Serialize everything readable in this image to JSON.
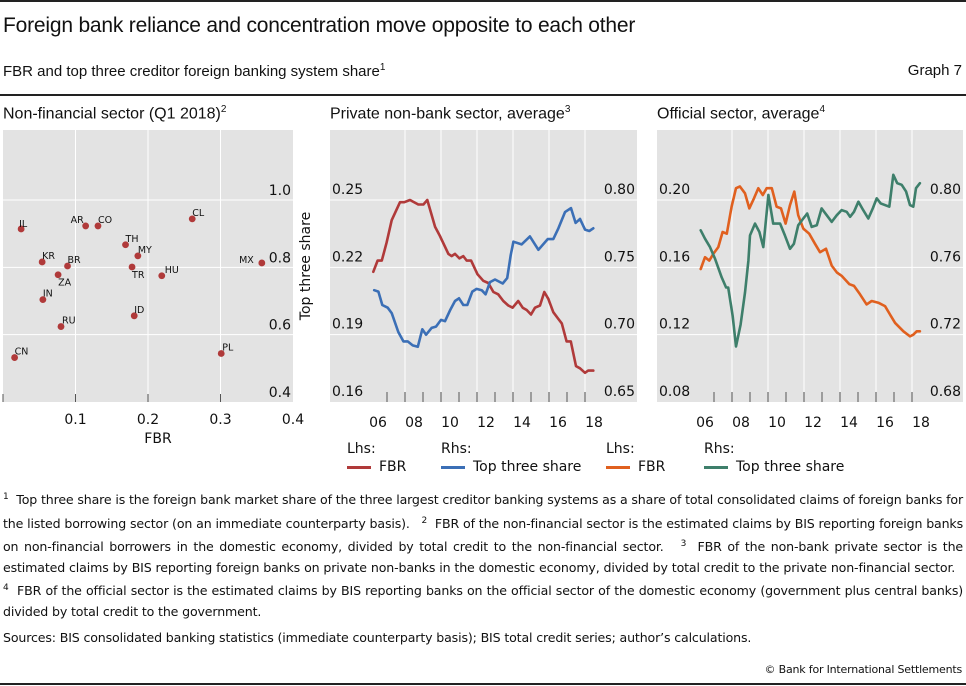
{
  "header": {
    "title": "Foreign bank reliance and concentration move opposite to each other",
    "subtitle": "FBR and top three creditor foreign banking system share",
    "subtitle_note": "1",
    "graph_number": "Graph 7"
  },
  "colors": {
    "panel_bg": "#e3e3e3",
    "grid": "#ffffff",
    "scatter_dot": "#b03a3a",
    "fbr_private": "#b03a3a",
    "top3_private": "#3b6fb6",
    "fbr_official": "#e0601f",
    "top3_official": "#3e7f6b"
  },
  "legend": {
    "panel2": {
      "lhs_label": "Lhs:",
      "rhs_label": "Rhs:",
      "lhs_series": "FBR",
      "rhs_series": "Top three share"
    },
    "panel3": {
      "lhs_label": "Lhs:",
      "rhs_label": "Rhs:",
      "lhs_series": "FBR",
      "rhs_series": "Top three share"
    }
  },
  "chart_data": [
    {
      "type": "scatter",
      "title": "Non-financial sector (Q1 2018)",
      "title_note": "2",
      "xlabel": "FBR",
      "ylabel": "Top three share",
      "xlim": [
        0,
        0.4
      ],
      "ylim": [
        0.4,
        1.1
      ],
      "xticks": [
        "0.1",
        "0.2",
        "0.3",
        "0.4"
      ],
      "xtick_values": [
        0.1,
        0.2,
        0.3,
        0.4
      ],
      "yticks": [
        "0.4",
        "0.6",
        "0.8",
        "1.0"
      ],
      "ytick_values": [
        0.4,
        0.6,
        0.8,
        1.0
      ],
      "grid": true,
      "points": [
        {
          "label": "IL",
          "x": 0.025,
          "y": 0.914
        },
        {
          "label": "AR",
          "x": 0.114,
          "y": 0.923
        },
        {
          "label": "CO",
          "x": 0.131,
          "y": 0.923
        },
        {
          "label": "CL",
          "x": 0.261,
          "y": 0.944
        },
        {
          "label": "TH",
          "x": 0.169,
          "y": 0.867
        },
        {
          "label": "MY",
          "x": 0.186,
          "y": 0.834
        },
        {
          "label": "KR",
          "x": 0.054,
          "y": 0.816
        },
        {
          "label": "BR",
          "x": 0.089,
          "y": 0.804
        },
        {
          "label": "MX",
          "x": 0.357,
          "y": 0.813
        },
        {
          "label": "TR",
          "x": 0.178,
          "y": 0.801
        },
        {
          "label": "ZA",
          "x": 0.076,
          "y": 0.778
        },
        {
          "label": "HU",
          "x": 0.219,
          "y": 0.775
        },
        {
          "label": "IN",
          "x": 0.055,
          "y": 0.704
        },
        {
          "label": "ID",
          "x": 0.181,
          "y": 0.656
        },
        {
          "label": "RU",
          "x": 0.08,
          "y": 0.624
        },
        {
          "label": "PL",
          "x": 0.301,
          "y": 0.544
        },
        {
          "label": "CN",
          "x": 0.016,
          "y": 0.532
        }
      ]
    },
    {
      "type": "line",
      "title": "Private non-bank sector, average",
      "title_note": "3",
      "xlim": [
        2005,
        2019
      ],
      "xticks": [
        "06",
        "08",
        "10",
        "12",
        "14",
        "16",
        "18"
      ],
      "ylim_left": [
        0.16,
        0.28
      ],
      "ylim_right": [
        0.65,
        0.85
      ],
      "yticks_left": [
        "0.16",
        "0.19",
        "0.22",
        "0.25"
      ],
      "ytick_values_left": [
        0.16,
        0.19,
        0.22,
        0.25
      ],
      "yticks_right": [
        "0.65",
        "0.70",
        "0.75",
        "0.80"
      ],
      "ytick_values_right": [
        0.65,
        0.7,
        0.75,
        0.8
      ],
      "grid": true,
      "legend_position": "bottom",
      "series": [
        {
          "name": "FBR",
          "axis": "left",
          "x": [
            2006.24,
            2006.48,
            2006.71,
            2006.98,
            2007.26,
            2007.72,
            2007.96,
            2008.28,
            2008.74,
            2009.02,
            2009.24,
            2009.67,
            2009.94,
            2010.41,
            2010.59,
            2010.78,
            2011.02,
            2011.24,
            2011.43,
            2011.67,
            2012.02,
            2012.35,
            2012.63,
            2012.91,
            2013.18,
            2013.46,
            2013.74,
            2013.98,
            2014.29,
            2014.54,
            2014.76,
            2015.0,
            2015.22,
            2015.5,
            2015.74,
            2015.96,
            2016.24,
            2016.52,
            2016.71,
            2016.98,
            2017.21,
            2017.5,
            2017.72,
            2018.0,
            2018.18,
            2018.46
          ],
          "values": [
            0.218,
            0.223,
            0.223,
            0.231,
            0.241,
            0.249,
            0.249,
            0.25,
            0.248,
            0.248,
            0.25,
            0.238,
            0.234,
            0.226,
            0.225,
            0.226,
            0.224,
            0.225,
            0.223,
            0.223,
            0.217,
            0.214,
            0.213,
            0.209,
            0.208,
            0.205,
            0.203,
            0.202,
            0.205,
            0.202,
            0.201,
            0.199,
            0.202,
            0.203,
            0.209,
            0.206,
            0.2,
            0.197,
            0.195,
            0.187,
            0.187,
            0.176,
            0.175,
            0.173,
            0.174,
            0.174
          ]
        },
        {
          "name": "Top three share",
          "axis": "right",
          "x": [
            2006.29,
            2006.52,
            2006.74,
            2007.04,
            2007.26,
            2007.63,
            2007.91,
            2008.15,
            2008.43,
            2008.71,
            2008.96,
            2009.17,
            2009.48,
            2009.72,
            2010.0,
            2010.22,
            2010.5,
            2010.78,
            2011.0,
            2011.24,
            2011.46,
            2011.74,
            2011.98,
            2012.26,
            2012.48,
            2012.72,
            2013.0,
            2013.43,
            2013.68,
            2013.87,
            2014.02,
            2014.48,
            2014.94,
            2015.41,
            2015.93,
            2016.24,
            2016.52,
            2016.89,
            2017.22,
            2017.48,
            2017.72,
            2018.0,
            2018.24,
            2018.46
          ],
          "values": [
            0.733,
            0.732,
            0.722,
            0.72,
            0.716,
            0.702,
            0.695,
            0.695,
            0.692,
            0.691,
            0.704,
            0.7,
            0.705,
            0.706,
            0.711,
            0.71,
            0.718,
            0.725,
            0.727,
            0.722,
            0.722,
            0.732,
            0.734,
            0.733,
            0.73,
            0.739,
            0.741,
            0.738,
            0.742,
            0.759,
            0.769,
            0.767,
            0.773,
            0.763,
            0.771,
            0.771,
            0.779,
            0.791,
            0.794,
            0.783,
            0.786,
            0.778,
            0.777,
            0.779
          ]
        }
      ]
    },
    {
      "type": "line",
      "title": "Official sector, average",
      "title_note": "4",
      "xlim": [
        2005,
        2019
      ],
      "xticks": [
        "06",
        "08",
        "10",
        "12",
        "14",
        "16",
        "18"
      ],
      "ylim_left": [
        0.08,
        0.24
      ],
      "ylim_right": [
        0.68,
        0.84
      ],
      "yticks_left": [
        "0.08",
        "0.12",
        "0.16",
        "0.20"
      ],
      "ytick_values_left": [
        0.08,
        0.12,
        0.16,
        0.2
      ],
      "yticks_right": [
        "0.68",
        "0.72",
        "0.76",
        "0.80"
      ],
      "ytick_values_right": [
        0.68,
        0.72,
        0.76,
        0.8
      ],
      "grid": true,
      "legend_position": "bottom",
      "series": [
        {
          "name": "FBR",
          "axis": "left",
          "x": [
            2006.26,
            2006.5,
            2006.74,
            2006.96,
            2007.24,
            2007.48,
            2007.71,
            2007.98,
            2008.22,
            2008.44,
            2008.72,
            2008.96,
            2009.22,
            2009.46,
            2009.71,
            2009.93,
            2010.21,
            2010.48,
            2010.72,
            2010.98,
            2011.22,
            2011.46,
            2011.68,
            2011.96,
            2012.29,
            2012.61,
            2012.89,
            2013.22,
            2013.54,
            2013.82,
            2014.09,
            2014.52,
            2014.78,
            2015.11,
            2015.48,
            2015.76,
            2016.13,
            2016.5,
            2016.78,
            2017.06,
            2017.52,
            2017.89,
            2018.07,
            2018.26,
            2018.44
          ],
          "values": [
            0.159,
            0.166,
            0.164,
            0.168,
            0.172,
            0.181,
            0.18,
            0.196,
            0.207,
            0.208,
            0.204,
            0.195,
            0.201,
            0.207,
            0.203,
            0.207,
            0.207,
            0.196,
            0.195,
            0.186,
            0.197,
            0.205,
            0.191,
            0.183,
            0.18,
            0.174,
            0.169,
            0.171,
            0.161,
            0.157,
            0.155,
            0.15,
            0.149,
            0.144,
            0.138,
            0.14,
            0.139,
            0.137,
            0.132,
            0.127,
            0.122,
            0.119,
            0.12,
            0.122,
            0.122
          ]
        },
        {
          "name": "Top three share",
          "axis": "right",
          "x": [
            2006.26,
            2006.5,
            2006.78,
            2007.06,
            2007.43,
            2007.67,
            2007.79,
            2008.04,
            2008.22,
            2008.48,
            2008.72,
            2008.91,
            2009.0,
            2009.28,
            2009.52,
            2009.74,
            2010.02,
            2010.29,
            2010.67,
            2010.94,
            2011.22,
            2011.44,
            2011.68,
            2011.96,
            2012.18,
            2012.43,
            2012.71,
            2012.98,
            2013.26,
            2013.54,
            2013.82,
            2014.09,
            2014.37,
            2014.56,
            2014.78,
            2015.02,
            2015.29,
            2015.57,
            2015.82,
            2016.04,
            2016.26,
            2016.5,
            2016.74,
            2016.96,
            2017.18,
            2017.43,
            2017.67,
            2017.89,
            2018.07,
            2018.22,
            2018.44
          ],
          "values": [
            0.782,
            0.777,
            0.772,
            0.765,
            0.754,
            0.748,
            0.748,
            0.731,
            0.713,
            0.726,
            0.745,
            0.764,
            0.779,
            0.786,
            0.781,
            0.772,
            0.803,
            0.786,
            0.786,
            0.779,
            0.771,
            0.774,
            0.785,
            0.789,
            0.792,
            0.784,
            0.785,
            0.795,
            0.791,
            0.787,
            0.791,
            0.794,
            0.793,
            0.79,
            0.793,
            0.799,
            0.794,
            0.789,
            0.795,
            0.801,
            0.798,
            0.797,
            0.796,
            0.815,
            0.81,
            0.809,
            0.805,
            0.797,
            0.796,
            0.807,
            0.81
          ]
        }
      ]
    }
  ],
  "notes": {
    "n1_mark": "1",
    "n1": "Top three share is the foreign bank market share of the three largest creditor banking systems as a share of total consolidated claims of foreign banks for the listed borrowing sector (on an immediate counterparty basis).",
    "n2_mark": "2",
    "n2": "FBR of the non-financial sector is the estimated claims by BIS reporting foreign banks on non-financial borrowers in the domestic economy, divided by total credit to the non-financial sector.",
    "n3_mark": "3",
    "n3": "FBR of the non-bank private sector is the estimated claims by BIS reporting foreign banks on private non-banks in the domestic economy, divided by total credit to the private non-financial sector.",
    "n4_mark": "4",
    "n4": "FBR of the official sector is the estimated claims by BIS reporting banks on the official sector of the domestic economy (government plus central banks) divided by total credit to the government."
  },
  "sources": "Sources: BIS consolidated banking statistics (immediate counterparty basis); BIS total credit series; author’s calculations.",
  "copyright": "© Bank for International Settlements"
}
